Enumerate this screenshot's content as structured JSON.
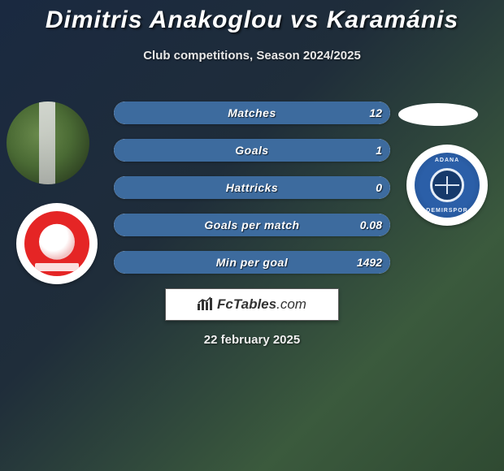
{
  "title": "Dimitris Anakoglou vs Karamánis",
  "subtitle": "Club competitions, Season 2024/2025",
  "date": "22 february 2025",
  "logo_text_brand": "FcTables",
  "logo_text_domain": ".com",
  "right_badge_text_top": "ADANA",
  "right_badge_text_bot": "DEMIRSPOR",
  "colors": {
    "fill": "#3d6b9e",
    "pill_bg": "#ffffff"
  },
  "stats": [
    {
      "label": "Matches",
      "value_right": "12",
      "fill_pct": 100
    },
    {
      "label": "Goals",
      "value_right": "1",
      "fill_pct": 100
    },
    {
      "label": "Hattricks",
      "value_right": "0",
      "fill_pct": 100
    },
    {
      "label": "Goals per match",
      "value_right": "0.08",
      "fill_pct": 100
    },
    {
      "label": "Min per goal",
      "value_right": "1492",
      "fill_pct": 100
    }
  ]
}
